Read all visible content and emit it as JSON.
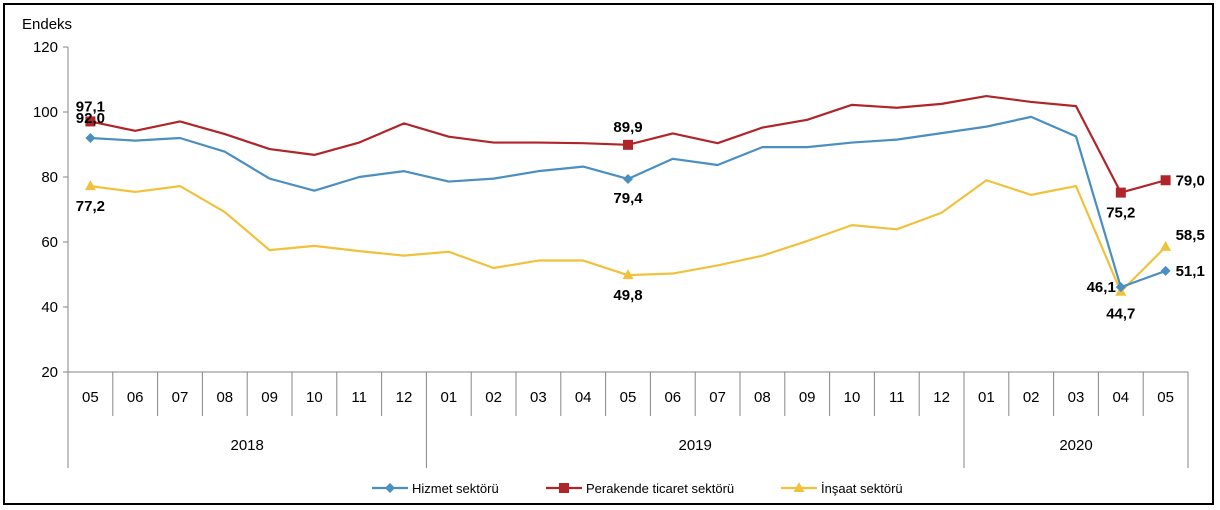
{
  "chart_data": {
    "type": "line",
    "ylabel": "Endeks",
    "ylim": [
      20,
      120
    ],
    "yticks": [
      "20",
      "40",
      "60",
      "80",
      "100",
      "120"
    ],
    "categories": [
      "05",
      "06",
      "07",
      "08",
      "09",
      "10",
      "11",
      "12",
      "01",
      "02",
      "03",
      "04",
      "05",
      "06",
      "07",
      "08",
      "09",
      "10",
      "11",
      "12",
      "01",
      "02",
      "03",
      "04",
      "05"
    ],
    "years": [
      {
        "label": "2018",
        "span": 8
      },
      {
        "label": "2019",
        "span": 12
      },
      {
        "label": "2020",
        "span": 5
      }
    ],
    "grid": false,
    "legend_position": "bottom",
    "series": [
      {
        "name": "Hizmet sektörü",
        "color": "#4a8ec2",
        "marker": "diamond",
        "values": [
          92.0,
          91.2,
          92.0,
          87.8,
          79.5,
          75.8,
          80.0,
          81.8,
          78.6,
          79.5,
          81.8,
          83.2,
          79.4,
          85.6,
          83.7,
          89.2,
          89.2,
          90.6,
          91.5,
          93.5,
          95.5,
          98.5,
          92.5,
          46.1,
          51.1
        ]
      },
      {
        "name": "Perakende ticaret sektörü",
        "color": "#b0252a",
        "marker": "square",
        "values": [
          97.1,
          94.2,
          97.1,
          93.2,
          88.6,
          86.8,
          90.6,
          96.5,
          92.4,
          90.6,
          90.6,
          90.4,
          89.9,
          93.4,
          90.4,
          95.2,
          97.6,
          102.2,
          101.3,
          102.5,
          104.9,
          103.1,
          101.8,
          75.2,
          79.0
        ]
      },
      {
        "name": "İnşaat sektörü",
        "color": "#f0c23c",
        "marker": "triangle",
        "values": [
          77.2,
          75.4,
          77.2,
          69.2,
          57.5,
          58.8,
          57.2,
          55.8,
          57.0,
          52.0,
          54.3,
          54.3,
          49.8,
          50.3,
          52.8,
          55.8,
          60.3,
          65.2,
          63.9,
          69.0,
          79.0,
          74.5,
          77.2,
          44.7,
          58.5
        ]
      }
    ],
    "annotations": [
      {
        "series": 1,
        "index": 0,
        "text": "97,1"
      },
      {
        "series": 0,
        "index": 0,
        "text": "92,0"
      },
      {
        "series": 2,
        "index": 0,
        "text": "77,2"
      },
      {
        "series": 1,
        "index": 12,
        "text": "89,9"
      },
      {
        "series": 0,
        "index": 12,
        "text": "79,4"
      },
      {
        "series": 2,
        "index": 12,
        "text": "49,8"
      },
      {
        "series": 1,
        "index": 23,
        "text": "75,2"
      },
      {
        "series": 1,
        "index": 24,
        "text": "79,0"
      },
      {
        "series": 0,
        "index": 23,
        "text": "46,1"
      },
      {
        "series": 2,
        "index": 23,
        "text": "44,7"
      },
      {
        "series": 2,
        "index": 24,
        "text": "58,5"
      },
      {
        "series": 0,
        "index": 24,
        "text": "51,1"
      }
    ]
  }
}
